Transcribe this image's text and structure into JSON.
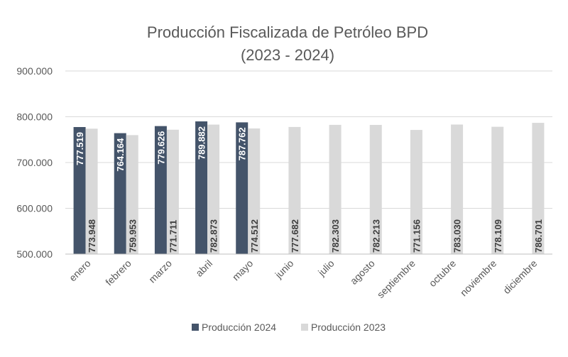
{
  "chart_data": {
    "type": "bar",
    "title_line1": "Producción Fiscalizada de Petróleo BPD",
    "title_line2": "(2023 - 2024)",
    "xlabel": "",
    "ylabel": "",
    "ylim": [
      500000,
      900000
    ],
    "y_ticks": [
      {
        "value": 500000,
        "label": "500.000"
      },
      {
        "value": 600000,
        "label": "600.000"
      },
      {
        "value": 700000,
        "label": "700.000"
      },
      {
        "value": 800000,
        "label": "800.000"
      },
      {
        "value": 900000,
        "label": "900.000"
      }
    ],
    "categories": [
      "enero",
      "febrero",
      "marzo",
      "abril",
      "mayo",
      "junio",
      "julio",
      "agosto",
      "septiembre",
      "octubre",
      "noviembre",
      "diciembre"
    ],
    "series": [
      {
        "name": "Producción 2024",
        "color": "#44546a",
        "label_color": "#ffffff",
        "values": [
          777519,
          764164,
          779626,
          789882,
          787762,
          null,
          null,
          null,
          null,
          null,
          null,
          null
        ],
        "labels": [
          "777.519",
          "764.164",
          "779.626",
          "789.882",
          "787.762",
          null,
          null,
          null,
          null,
          null,
          null,
          null
        ]
      },
      {
        "name": "Producción 2023",
        "color": "#d9d9d9",
        "label_color": "#404040",
        "values": [
          773948,
          759953,
          771711,
          782873,
          774512,
          777682,
          782303,
          782213,
          771156,
          783030,
          778109,
          786701
        ],
        "labels": [
          "773.948",
          "759.953",
          "771.711",
          "782.873",
          "774.512",
          "777.682",
          "782.303",
          "782.213",
          "771.156",
          "783.030",
          "778.109",
          "786.701"
        ]
      }
    ],
    "grid": true,
    "legend_position": "bottom"
  }
}
